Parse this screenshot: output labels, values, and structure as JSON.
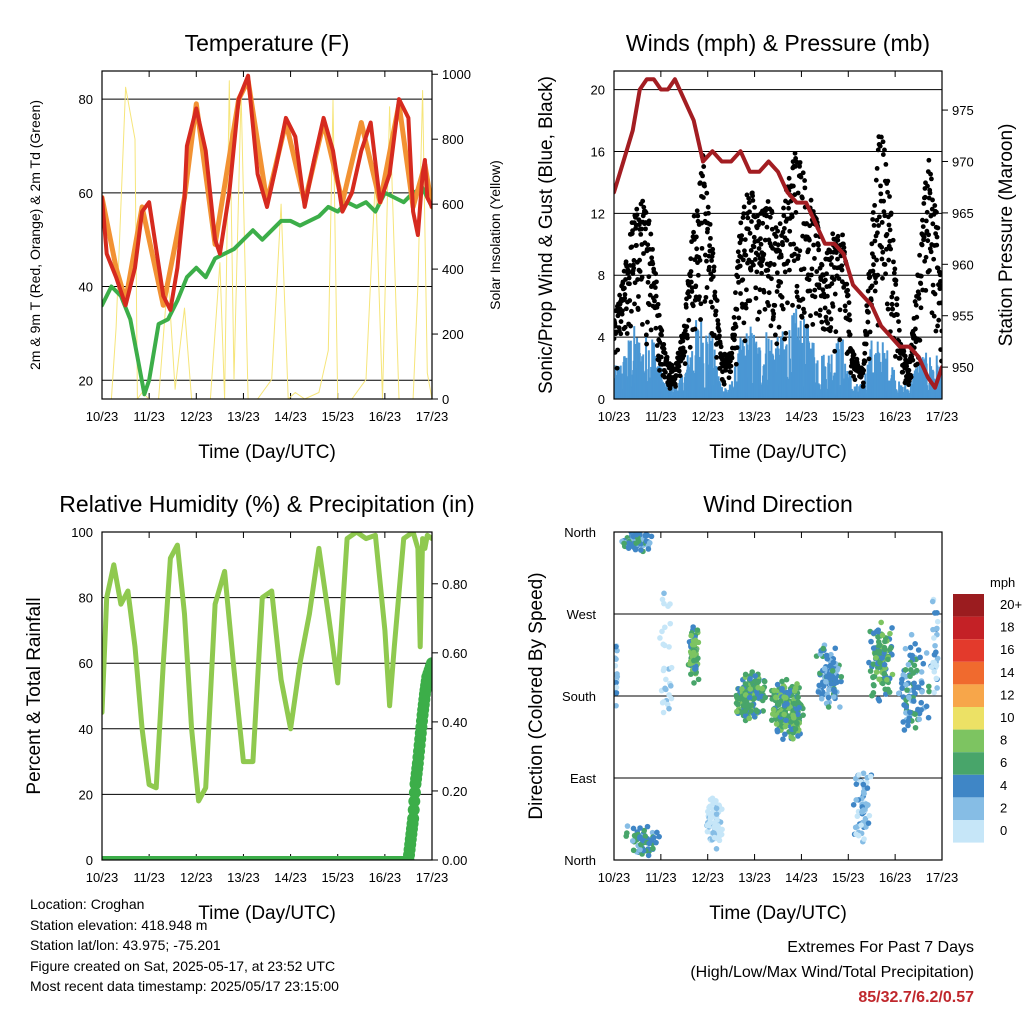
{
  "x_ticks": [
    "10/23",
    "11/23",
    "12/23",
    "13/23",
    "14/23",
    "15/23",
    "16/23",
    "17/23"
  ],
  "info": {
    "location": "Location: Croghan",
    "elevation": "Station elevation: 418.948 m",
    "latlon": "Station lat/lon: 43.975; -75.201",
    "created": "Figure created on Sat, 2025-05-17, at 23:52 UTC",
    "recent": "Most recent data timestamp: 2025/05/17 23:15:00"
  },
  "extremes": {
    "title": "Extremes For Past 7 Days",
    "subtitle": "(High/Low/Max Wind/Total Precipitation)",
    "values": "85/32.7/6.2/0.57"
  },
  "colors": {
    "temp_2m": "#d62a1f",
    "temp_9m": "#f29233",
    "dewpoint": "#3cae49",
    "solar": "#f6e57a",
    "sonic_wind": "#4a97d4",
    "gust": "#000000",
    "pressure": "#a31d22",
    "rh": "#8fc94f",
    "precip": "#3cae49"
  },
  "chart_data": [
    {
      "type": "line",
      "title": "Temperature (F)",
      "xlabel": "Time (Day/UTC)",
      "ylabel": "2m & 9m T (Red, Orange) & 2m Td (Green)",
      "ylabel_right": "Solar Insolation (Yellow)",
      "x_ticks": [
        "10/23",
        "11/23",
        "12/23",
        "13/23",
        "14/23",
        "15/23",
        "16/23",
        "17/23"
      ],
      "yticks": [
        20,
        40,
        60,
        80
      ],
      "ylim": [
        16,
        86
      ],
      "yticks_right": [
        0,
        200,
        400,
        600,
        800,
        1000
      ],
      "ylim_right": [
        0,
        1010
      ],
      "grid": true,
      "series": [
        {
          "name": "2m T",
          "color": "#d62a1f",
          "x": [
            0,
            0.1,
            0.3,
            0.5,
            0.7,
            0.85,
            1.0,
            1.15,
            1.3,
            1.45,
            1.6,
            1.75,
            1.8,
            2.0,
            2.2,
            2.4,
            2.5,
            2.7,
            2.9,
            3.1,
            3.3,
            3.5,
            3.7,
            3.9,
            4.1,
            4.3,
            4.5,
            4.7,
            4.9,
            5.1,
            5.3,
            5.5,
            5.7,
            5.9,
            6.1,
            6.3,
            6.5,
            6.6,
            6.7,
            6.8,
            6.85,
            6.9,
            7.0
          ],
          "y": [
            59,
            47,
            42,
            36,
            44,
            56,
            58,
            48,
            38,
            35,
            44,
            59,
            70,
            78,
            69,
            50,
            47,
            60,
            80,
            85,
            64,
            57,
            66,
            76,
            72,
            57,
            67,
            76,
            69,
            56,
            60,
            69,
            75,
            58,
            64,
            80,
            76,
            56,
            51,
            64,
            67,
            59,
            57
          ]
        },
        {
          "name": "9m T",
          "color": "#f29233",
          "x": [
            0,
            0.3,
            0.5,
            0.85,
            1.3,
            1.75,
            2.0,
            2.4,
            2.9,
            3.1,
            3.5,
            3.9,
            4.3,
            4.7,
            5.1,
            5.5,
            5.9,
            6.3,
            6.6,
            6.85,
            7.0
          ],
          "y": [
            59,
            44,
            37,
            57,
            36,
            59,
            79,
            49,
            80,
            84,
            58,
            75,
            58,
            75,
            58,
            75,
            58,
            79,
            57,
            66,
            57
          ]
        },
        {
          "name": "2m Td",
          "color": "#3cae49",
          "x": [
            0,
            0.2,
            0.4,
            0.6,
            0.75,
            0.9,
            1.0,
            1.2,
            1.4,
            1.6,
            1.8,
            2.0,
            2.2,
            2.4,
            2.6,
            2.8,
            3.0,
            3.2,
            3.4,
            3.6,
            3.8,
            4.0,
            4.2,
            4.4,
            4.6,
            4.8,
            5.0,
            5.2,
            5.4,
            5.6,
            5.8,
            6.0,
            6.2,
            6.4,
            6.6,
            6.8,
            7.0
          ],
          "y": [
            36,
            40,
            38,
            33,
            25,
            17,
            20,
            32,
            33,
            37,
            42,
            44,
            42,
            46,
            47,
            48,
            50,
            52,
            50,
            52,
            54,
            54,
            53,
            54,
            55,
            57,
            56,
            58,
            57,
            58,
            56,
            60,
            59,
            58,
            60,
            61,
            57
          ]
        },
        {
          "name": "Solar Insolation",
          "color": "#f6e57a",
          "axis": "right",
          "x": [
            0,
            0.2,
            0.3,
            0.5,
            0.7,
            0.75,
            0.85,
            1.0,
            1.2,
            1.4,
            1.55,
            1.75,
            1.9,
            2.3,
            2.5,
            2.6,
            2.7,
            2.8,
            2.95,
            3.1,
            3.3,
            3.6,
            3.8,
            3.95,
            4.1,
            4.3,
            4.6,
            4.8,
            4.9,
            5.0,
            5.15,
            5.3,
            5.6,
            5.8,
            5.95,
            6.1,
            6.3,
            6.6,
            6.7,
            6.8,
            6.9,
            7.0
          ],
          "y": [
            0,
            0,
            220,
            960,
            800,
            0,
            20,
            0,
            0,
            380,
            30,
            280,
            0,
            0,
            420,
            0,
            980,
            60,
            940,
            0,
            0,
            60,
            600,
            0,
            20,
            0,
            20,
            150,
            920,
            0,
            0,
            0,
            60,
            680,
            0,
            900,
            0,
            0,
            350,
            950,
            80,
            0
          ]
        }
      ]
    },
    {
      "type": "scatter",
      "title": "Winds (mph) & Pressure (mb)",
      "xlabel": "Time (Day/UTC)",
      "ylabel": "Sonic/Prop Wind & Gust (Blue, Black)",
      "ylabel_right": "Station Pressure (Maroon)",
      "x_ticks": [
        "10/23",
        "11/23",
        "12/23",
        "13/23",
        "14/23",
        "15/23",
        "16/23",
        "17/23"
      ],
      "yticks": [
        0,
        4,
        8,
        12,
        16,
        20
      ],
      "ylim": [
        0,
        21.2
      ],
      "yticks_right": [
        950,
        955,
        960,
        965,
        970,
        975
      ],
      "ylim_right": [
        946.9,
        978.8
      ],
      "grid": true,
      "series": [
        {
          "name": "Station Pressure",
          "color": "#a31d22",
          "type": "line",
          "x": [
            0,
            0.2,
            0.4,
            0.55,
            0.7,
            0.85,
            1.0,
            1.15,
            1.3,
            1.5,
            1.7,
            1.9,
            2.1,
            2.3,
            2.5,
            2.7,
            2.9,
            3.1,
            3.3,
            3.5,
            3.7,
            3.9,
            4.1,
            4.3,
            4.5,
            4.7,
            4.9,
            5.1,
            5.3,
            5.5,
            5.7,
            5.9,
            6.1,
            6.3,
            6.5,
            6.7,
            6.85,
            7.0
          ],
          "y": [
            967,
            970,
            973,
            977,
            978,
            978,
            977,
            977,
            978,
            976,
            974,
            970,
            971,
            970,
            970,
            971,
            969,
            969,
            970,
            969,
            967,
            966,
            966,
            964,
            962,
            962,
            961,
            958,
            957,
            956,
            954,
            953,
            952,
            952,
            951,
            949,
            948,
            950
          ]
        }
      ],
      "wind_envelope": {
        "x": [
          0,
          0.2,
          0.4,
          0.6,
          0.8,
          0.95,
          1.1,
          1.3,
          1.5,
          1.7,
          1.9,
          2.1,
          2.3,
          2.5,
          2.7,
          2.9,
          3.1,
          3.3,
          3.5,
          3.7,
          3.9,
          4.1,
          4.3,
          4.5,
          4.7,
          4.9,
          5.1,
          5.3,
          5.5,
          5.7,
          5.9,
          6.1,
          6.3,
          6.5,
          6.7,
          6.9,
          7.0
        ],
        "sonic_max": [
          2,
          3,
          5,
          4,
          5,
          3,
          1,
          1,
          2,
          5,
          6,
          4,
          1,
          1,
          4,
          5,
          4,
          5,
          4,
          5,
          6,
          5,
          4,
          3,
          4,
          4,
          1,
          1,
          4,
          4,
          3,
          1,
          1,
          3,
          3,
          3,
          2
        ],
        "gust_max": [
          5,
          8,
          12,
          13,
          12,
          6,
          3,
          2,
          5,
          12,
          16,
          10,
          3,
          3,
          12,
          14,
          12,
          13,
          11,
          14,
          17,
          14,
          12,
          9,
          11,
          11,
          3,
          2,
          11,
          19,
          13,
          4,
          2,
          9,
          16,
          12,
          6
        ]
      }
    },
    {
      "type": "line",
      "title": "Relative Humidity (%) & Precipitation (in)",
      "xlabel": "Time (Day/UTC)",
      "ylabel": "Percent & Total Rainfall",
      "x_ticks": [
        "10/23",
        "11/23",
        "12/23",
        "13/23",
        "14/23",
        "15/23",
        "16/23",
        "17/23"
      ],
      "yticks": [
        0,
        20,
        40,
        60,
        80,
        100
      ],
      "ylim": [
        0,
        100
      ],
      "yticks_right": [
        "0.00",
        "0.20",
        "0.40",
        "0.60",
        "0.80"
      ],
      "ylim_right": [
        0,
        0.95
      ],
      "grid": true,
      "series": [
        {
          "name": "Relative Humidity",
          "color": "#8fc94f",
          "x": [
            0,
            0.1,
            0.25,
            0.4,
            0.55,
            0.7,
            0.85,
            1.0,
            1.15,
            1.3,
            1.45,
            1.6,
            1.75,
            1.9,
            2.05,
            2.2,
            2.4,
            2.6,
            2.8,
            3.0,
            3.2,
            3.4,
            3.6,
            3.8,
            4.0,
            4.2,
            4.4,
            4.6,
            4.8,
            5.0,
            5.2,
            5.4,
            5.6,
            5.8,
            6.0,
            6.1,
            6.2,
            6.4,
            6.6,
            6.7,
            6.75,
            6.8,
            6.85,
            6.9,
            7.0
          ],
          "y": [
            45,
            80,
            90,
            78,
            82,
            65,
            40,
            23,
            22,
            60,
            92,
            96,
            75,
            40,
            18,
            22,
            78,
            88,
            58,
            30,
            30,
            80,
            82,
            55,
            40,
            60,
            75,
            95,
            75,
            54,
            98,
            100,
            98,
            99,
            70,
            47,
            65,
            98,
            100,
            95,
            65,
            98,
            95,
            99,
            98
          ]
        },
        {
          "name": "Total Precipitation",
          "color": "#3cae49",
          "axis": "right",
          "x": [
            0,
            6.5,
            6.55,
            6.6,
            6.65,
            6.7,
            6.75,
            6.8,
            6.85,
            6.9,
            7.0
          ],
          "y": [
            0,
            0,
            0.06,
            0.12,
            0.22,
            0.28,
            0.35,
            0.42,
            0.48,
            0.53,
            0.57
          ]
        }
      ]
    },
    {
      "type": "scatter",
      "title": "Wind Direction",
      "xlabel": "Time (Day/UTC)",
      "ylabel": "Direction (Colored By Speed)",
      "x_ticks": [
        "10/23",
        "11/23",
        "12/23",
        "13/23",
        "14/23",
        "15/23",
        "16/23",
        "17/23"
      ],
      "yticks": [
        "North",
        "East",
        "South",
        "West",
        "North"
      ],
      "ylim": [
        0,
        360
      ],
      "grid": true,
      "legend": {
        "title": "mph",
        "labels": [
          "20+",
          "18",
          "16",
          "14",
          "12",
          "10",
          "8",
          "6",
          "4",
          "2",
          "0"
        ],
        "colors": [
          "#9b1c1f",
          "#c42126",
          "#e33a2c",
          "#f06a2e",
          "#f7a64a",
          "#ece165",
          "#7dc461",
          "#48a56a",
          "#3f86c6",
          "#86bde5",
          "#c6e6f8"
        ]
      },
      "clusters": [
        {
          "x": 0.05,
          "y": 200,
          "spread_x": 0.05,
          "spread_y": 40,
          "n": 18,
          "speed": 1
        },
        {
          "x": 0.5,
          "y": 350,
          "spread_x": 0.35,
          "spread_y": 12,
          "n": 70,
          "speed": 2
        },
        {
          "x": 0.6,
          "y": 20,
          "spread_x": 0.4,
          "spread_y": 18,
          "n": 60,
          "speed": 2
        },
        {
          "x": 1.1,
          "y": 210,
          "spread_x": 0.15,
          "spread_y": 90,
          "n": 30,
          "speed": 0
        },
        {
          "x": 1.7,
          "y": 225,
          "spread_x": 0.12,
          "spread_y": 35,
          "n": 80,
          "speed": 3
        },
        {
          "x": 2.15,
          "y": 40,
          "spread_x": 0.2,
          "spread_y": 30,
          "n": 70,
          "speed": 0
        },
        {
          "x": 2.9,
          "y": 180,
          "spread_x": 0.35,
          "spread_y": 30,
          "n": 160,
          "speed": 3
        },
        {
          "x": 3.7,
          "y": 165,
          "spread_x": 0.4,
          "spread_y": 35,
          "n": 220,
          "speed": 3
        },
        {
          "x": 4.6,
          "y": 200,
          "spread_x": 0.3,
          "spread_y": 40,
          "n": 90,
          "speed": 2
        },
        {
          "x": 5.3,
          "y": 60,
          "spread_x": 0.2,
          "spread_y": 45,
          "n": 60,
          "speed": 1
        },
        {
          "x": 5.7,
          "y": 220,
          "spread_x": 0.3,
          "spread_y": 50,
          "n": 110,
          "speed": 3
        },
        {
          "x": 6.4,
          "y": 190,
          "spread_x": 0.35,
          "spread_y": 60,
          "n": 90,
          "speed": 2
        },
        {
          "x": 6.85,
          "y": 230,
          "spread_x": 0.1,
          "spread_y": 60,
          "n": 30,
          "speed": 1
        }
      ]
    }
  ]
}
